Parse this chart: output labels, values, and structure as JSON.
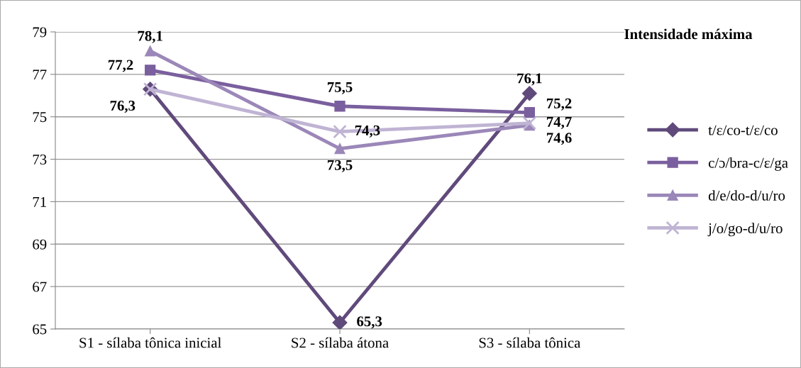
{
  "chart_data": {
    "type": "line",
    "legend_title": "Intensidade máxima",
    "categories": [
      "S1 - sílaba tônica inicial",
      "S2 - sílaba átona",
      "S3 - sílaba tônica"
    ],
    "series": [
      {
        "name": "t/ε/co-t/ε/co",
        "color": "#604a7b",
        "marker": "diamond",
        "values": [
          76.3,
          65.3,
          76.1
        ],
        "value_labels": [
          null,
          "65,3",
          "76,1"
        ]
      },
      {
        "name": "c/ɔ/bra-c/ε/ga",
        "color": "#7a5f9e",
        "marker": "square",
        "values": [
          77.2,
          75.5,
          75.2
        ],
        "value_labels": [
          "77,2",
          "75,5",
          "75,2"
        ]
      },
      {
        "name": "d/e/do-d/u/ro",
        "color": "#9b87b8",
        "marker": "triangle",
        "values": [
          78.1,
          73.5,
          74.6
        ],
        "value_labels": [
          "78,1",
          "73,5",
          "74,6"
        ]
      },
      {
        "name": "j/o/go-d/u/ro",
        "color": "#c0b4d4",
        "marker": "cross",
        "values": [
          76.3,
          74.3,
          74.7
        ],
        "value_labels": [
          "76,3",
          "74,3",
          "74,7"
        ]
      }
    ],
    "ylim": [
      65,
      79
    ],
    "yticks": [
      65,
      67,
      69,
      71,
      73,
      75,
      77,
      79
    ],
    "grid": "y",
    "legend": "right"
  }
}
